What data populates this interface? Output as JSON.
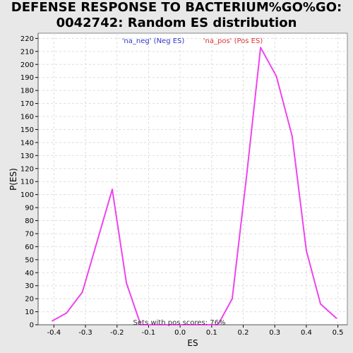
{
  "chart_data": {
    "type": "line",
    "title_line1": "DEFENSE RESPONSE TO BACTERIUM%GO%GO:",
    "title_line2": "0042742: Random ES distribution",
    "xlabel": "ES",
    "ylabel": "P(ES)",
    "xlim": [
      -0.45,
      0.53
    ],
    "ylim": [
      0,
      224
    ],
    "xticks": [
      -0.4,
      -0.3,
      -0.2,
      -0.1,
      0.0,
      0.1,
      0.2,
      0.3,
      0.4,
      0.5
    ],
    "yticks": [
      0,
      10,
      20,
      30,
      40,
      50,
      60,
      70,
      80,
      90,
      100,
      110,
      120,
      130,
      140,
      150,
      160,
      170,
      180,
      190,
      200,
      210,
      220
    ],
    "grid": true,
    "legend": [
      {
        "name": "'na_neg' (Neg ES)",
        "color": "#3333cc"
      },
      {
        "name": "'na_pos' (Pos ES)",
        "color": "#dd3333"
      }
    ],
    "annotation": "Sets with pos scores: 76%",
    "series": [
      {
        "name": "",
        "color": "#ee44ee",
        "x": [
          -0.405,
          -0.36,
          -0.31,
          -0.215,
          -0.17,
          -0.125,
          -0.08,
          0.12,
          0.165,
          0.21,
          0.255,
          0.305,
          0.355,
          0.4,
          0.445,
          0.495
        ],
        "y": [
          3,
          9,
          25,
          104,
          32,
          0,
          0,
          0,
          20,
          113,
          213,
          191,
          145,
          57,
          16,
          5
        ]
      }
    ]
  }
}
